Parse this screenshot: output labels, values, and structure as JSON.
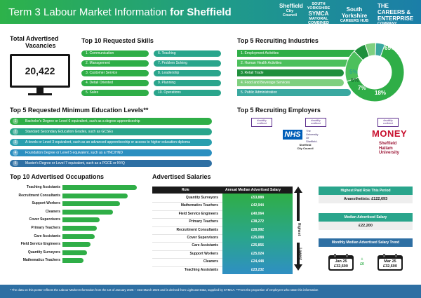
{
  "header": {
    "title_prefix": "Term 3 Labour Market Information ",
    "title_place": "for Sheffield",
    "logos": {
      "sheffield_line1": "Sheffield",
      "sheffield_line2": "City Council",
      "symca_line1": "SOUTH YORKSHIRE",
      "symca_line2": "SYMCA",
      "symca_line3": "MAYORAL COMBINED AUTHORITY",
      "careers_hub_line1": "South Yorkshire",
      "careers_hub_line2": "CAREERS HUB",
      "cec_line1": "THE CAREERS &",
      "cec_line2": "ENTERPRISE",
      "cec_line3": "COMPANY"
    }
  },
  "total_vacancies": {
    "title_line1": "Total Advertised",
    "title_line2": "Vacancies",
    "value": "20,422"
  },
  "skills": {
    "title": "Top 10 Requested Skills",
    "items": [
      "1. Communication",
      "2. Management",
      "3. Customer Service",
      "4. Detail Oriented",
      "5. Sales",
      "6. Teaching",
      "7. Problem Solving",
      "8. Leadership",
      "9. Planning",
      "10. Operations"
    ]
  },
  "industries": {
    "title": "Top 5 Recruiting Industries",
    "items": [
      "1. Employment Activities",
      "2. Human Health Activities",
      "3. Retail Trade",
      "4. Food and Beverage Services",
      "5. Public Administration"
    ],
    "percentages": [
      "65%",
      "18%",
      "7%",
      "6%",
      "5%"
    ],
    "colors": [
      "#2fae47",
      "#4cc05c",
      "#1f8f3c",
      "#7fd07f",
      "#3aa8a0"
    ]
  },
  "education": {
    "title": "Top 5 Requested Minimum Education Levels**",
    "items": [
      {
        "num": "1",
        "text": "Bachelor's Degree or Level 6 equivalent, such as a degree apprenticeship"
      },
      {
        "num": "2",
        "text": "Standard Secondary Education Grades, such as GCSEs"
      },
      {
        "num": "3",
        "text": "A-levels or Level 3 equivalent, such as an advanced apprenticeship or access to higher education diploma"
      },
      {
        "num": "4",
        "text": "Foundation Degree or Level 5 equivalent, such as a HNC/HND"
      },
      {
        "num": "5",
        "text": "Master's Degree or Level 7 equivalent, such as a PGCE or NVQ"
      }
    ]
  },
  "employers": {
    "title": "Top 5 Recruiting Employers",
    "badge_line1": "disability",
    "badge_line2": "confident",
    "badge_line3": "EMPLOYER",
    "nhs": "NHS",
    "uos_line1": "The",
    "uos_line2": "University",
    "uos_line3": "Of",
    "uos_line4": "Sheffield.",
    "sheffield_cc_line1": "Sheffield",
    "sheffield_cc_line2": "City Council",
    "money": "MONEY",
    "shu_line1": "Sheffield",
    "shu_line2": "Hallam",
    "shu_line3": "University"
  },
  "occupations": {
    "title": "Top 10 Advertised Occupations",
    "labels": [
      "Teaching Assistants",
      "Recruitment Consultants",
      "Support Workers",
      "Cleaners",
      "Cover Supervisors",
      "Primary Teachers",
      "Care Assistants",
      "Field Service Engineers",
      "Quantity Surveyors",
      "Mathematics Teachers"
    ],
    "relative_values": [
      1.0,
      0.88,
      0.77,
      0.68,
      0.5,
      0.46,
      0.43,
      0.38,
      0.33,
      0.28
    ]
  },
  "salaries": {
    "title": "Advertised Salaries",
    "col_role": "Role",
    "col_salary": "Annual Median Advertised Salary",
    "highest_label": "Highest",
    "lowest_label": "Lowest",
    "rows": [
      {
        "role": "Quantity Surveyors",
        "salary": "£53,888"
      },
      {
        "role": "Mathematics Teachers",
        "salary": "£42,944"
      },
      {
        "role": "Field Service Engineers",
        "salary": "£40,064"
      },
      {
        "role": "Primary Teachers",
        "salary": "£38,272"
      },
      {
        "role": "Recruitment Consultants",
        "salary": "£28,992"
      },
      {
        "role": "Cover Supervisors",
        "salary": "£25,088"
      },
      {
        "role": "Care Assistants",
        "salary": "£25,856"
      },
      {
        "role": "Support Workers",
        "salary": "£25,024"
      },
      {
        "role": "Cleaners",
        "salary": "£24,448"
      },
      {
        "role": "Teaching Assistants",
        "salary": "£23,232"
      }
    ]
  },
  "right_panels": {
    "highest_title": "Highest Paid Role This Period",
    "highest_value": "Anaesthetists: £122,693",
    "median_title": "Median Advertised Salary",
    "median_value": "£22,200",
    "trend_title": "Monthly Median Advertised Salary Trend",
    "trend_start_month": "Jan 25",
    "trend_start_value": "£32,600",
    "trend_change_sign": "+",
    "trend_change": "£0",
    "trend_end_month": "Mar 25",
    "trend_end_value": "£32,600"
  },
  "footer": {
    "text": "* The data on this poster reflects the Labour Market Information from the 1st of January 2025 – 31st March 2025 and is derived from Lightcast Data, supplied by SYMCA. **From the proportion of employers who state this information"
  },
  "colors": {
    "green": "#2fae47",
    "teal": "#1f9a8a",
    "blue": "#2e6fa3",
    "dark": "#1a1a1a"
  }
}
